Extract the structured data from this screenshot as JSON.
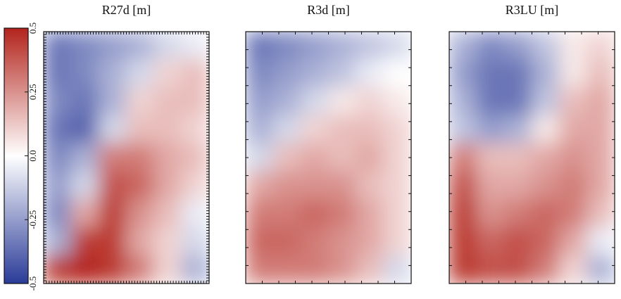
{
  "chart_data": [
    {
      "type": "heatmap",
      "title": "R27d [m]",
      "values": [
        [
          -0.35,
          -0.3,
          -0.25,
          -0.2,
          -0.1,
          -0.05
        ],
        [
          -0.35,
          -0.3,
          -0.2,
          -0.1,
          0.1,
          0.15
        ],
        [
          -0.3,
          -0.35,
          -0.2,
          0.1,
          0.15,
          0.15
        ],
        [
          -0.35,
          -0.4,
          -0.1,
          0.15,
          0.15,
          0.1
        ],
        [
          -0.3,
          -0.2,
          0.3,
          0.3,
          0.2,
          0.15
        ],
        [
          -0.25,
          -0.1,
          0.4,
          0.35,
          0.2,
          0.1
        ],
        [
          -0.3,
          0.2,
          0.45,
          0.25,
          0.15,
          -0.05
        ],
        [
          -0.2,
          0.45,
          0.45,
          0.2,
          0.1,
          -0.1
        ],
        [
          0.45,
          0.5,
          0.45,
          0.3,
          0.1,
          -0.2
        ]
      ]
    },
    {
      "type": "heatmap",
      "title": "R3d [m]",
      "values": [
        [
          -0.35,
          -0.3,
          -0.25,
          -0.2,
          -0.15,
          -0.1
        ],
        [
          -0.3,
          -0.25,
          -0.2,
          -0.15,
          -0.05,
          0
        ],
        [
          -0.25,
          -0.2,
          -0.1,
          0.05,
          0.1,
          0.05
        ],
        [
          -0.2,
          -0.1,
          0.1,
          0.15,
          0.15,
          0.1
        ],
        [
          -0.1,
          0.15,
          0.2,
          0.15,
          0.2,
          0.1
        ],
        [
          0.2,
          0.25,
          0.25,
          0.25,
          0.15,
          0.1
        ],
        [
          0.3,
          0.3,
          0.35,
          0.3,
          0.2,
          0.1
        ],
        [
          0.35,
          0.35,
          0.3,
          0.25,
          0.2,
          0.1
        ],
        [
          0.3,
          0.3,
          0.3,
          0.25,
          0.15,
          -0.1
        ]
      ]
    },
    {
      "type": "heatmap",
      "title": "R3LU [m]",
      "values": [
        [
          -0.2,
          -0.3,
          -0.25,
          -0.15,
          0.05,
          0.1
        ],
        [
          -0.25,
          -0.35,
          -0.35,
          -0.2,
          0.05,
          0.15
        ],
        [
          -0.2,
          -0.35,
          -0.35,
          -0.15,
          0.15,
          0.2
        ],
        [
          -0.15,
          -0.25,
          -0.2,
          0.05,
          0.2,
          0.2
        ],
        [
          0.3,
          0.15,
          0.15,
          0.2,
          0.25,
          0.2
        ],
        [
          0.4,
          0.2,
          0.2,
          0.25,
          0.3,
          0.2
        ],
        [
          0.45,
          0.25,
          0.3,
          0.35,
          0.3,
          0.15
        ],
        [
          0.45,
          0.35,
          0.4,
          0.35,
          0.2,
          -0.05
        ],
        [
          0.45,
          0.4,
          0.4,
          0.3,
          0.1,
          -0.2
        ]
      ]
    }
  ],
  "colorbar": {
    "clim": [
      -0.5,
      0.5
    ],
    "ticks": [
      -0.5,
      -0.25,
      {
        "value": 0,
        "label": "0.0"
      },
      0.25,
      0.5
    ],
    "colors": {
      "low": "#2a3b98",
      "mid": "#ffffff",
      "high": "#b3241c"
    }
  }
}
